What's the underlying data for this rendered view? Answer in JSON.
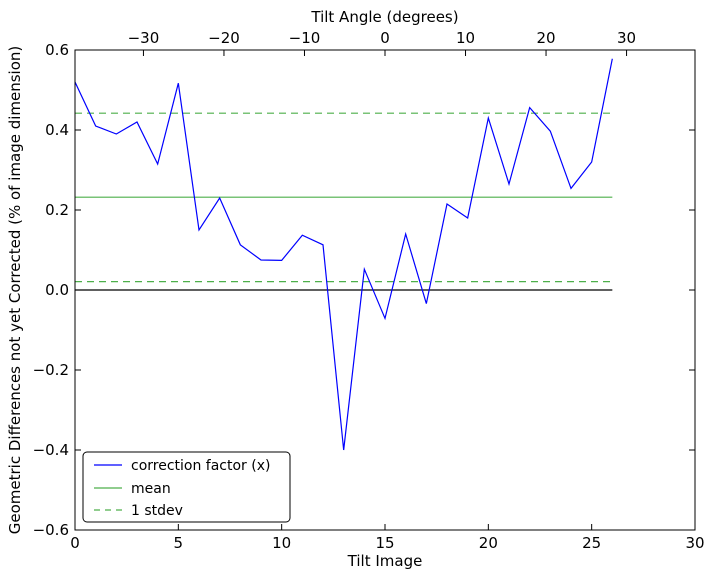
{
  "chart_data": {
    "type": "line",
    "xlabel": "Tilt Image",
    "ylabel": "Geometric Differences not yet Corrected (% of image dimension)",
    "top_xlabel": "Tilt Angle (degrees)",
    "xlim": [
      0,
      30
    ],
    "ylim": [
      -0.6,
      0.6
    ],
    "top_xlim": [
      -38.5,
      38.5
    ],
    "x_ticks": [
      0,
      5,
      10,
      15,
      20,
      25,
      30
    ],
    "y_ticks": [
      -0.6,
      -0.4,
      -0.2,
      0.0,
      0.2,
      0.4,
      0.6
    ],
    "y_tick_labels": [
      "−0.6",
      "−0.4",
      "−0.2",
      "0.0",
      "0.2",
      "0.4",
      "0.6"
    ],
    "top_ticks": [
      -30,
      -20,
      -10,
      0,
      10,
      20,
      30
    ],
    "top_tick_labels": [
      "−30",
      "−20",
      "−10",
      "0",
      "10",
      "20",
      "30"
    ],
    "grid": false,
    "legend_position": "lower-left",
    "series": [
      {
        "name": "correction factor (x)",
        "color": "#0000ff",
        "style": "solid",
        "x": [
          0,
          1,
          2,
          3,
          4,
          5,
          6,
          7,
          8,
          9,
          10,
          11,
          12,
          13,
          14,
          15,
          16,
          17,
          18,
          19,
          20,
          21,
          22,
          23,
          24,
          25,
          26
        ],
        "y": [
          0.52,
          0.41,
          0.39,
          0.42,
          0.315,
          0.517,
          0.15,
          0.23,
          0.113,
          0.075,
          0.074,
          0.137,
          0.113,
          -0.4,
          0.052,
          -0.071,
          0.14,
          -0.034,
          0.215,
          0.18,
          0.43,
          0.265,
          0.456,
          0.397,
          0.254,
          0.32,
          0.578
        ]
      },
      {
        "name": "mean",
        "color": "#4daf4a",
        "style": "solid",
        "x": [
          0,
          26
        ],
        "y": [
          0.232,
          0.232
        ]
      },
      {
        "name": "1 stdev",
        "color": "#4daf4a",
        "style": "dashed",
        "x": [
          0,
          26
        ],
        "y": [
          0.442,
          0.442
        ]
      },
      {
        "name": "",
        "color": "#4daf4a",
        "style": "dashed",
        "x": [
          0,
          26
        ],
        "y": [
          0.021,
          0.021
        ]
      },
      {
        "name": "",
        "color": "#000000",
        "style": "solid",
        "x": [
          0,
          26
        ],
        "y": [
          0.0,
          0.0
        ]
      }
    ],
    "legend_entries": [
      "correction factor (x)",
      "mean",
      "1 stdev"
    ]
  }
}
